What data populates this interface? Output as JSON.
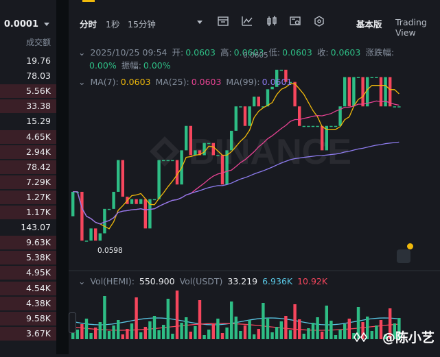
{
  "orderbook": {
    "header_price": "0.0001",
    "header_volume": "成交额",
    "rows": [
      {
        "v": "19.76",
        "fill": 0.0
      },
      {
        "v": "78.03",
        "fill": 0.0
      },
      {
        "v": "5.56K",
        "fill": 1.0
      },
      {
        "v": "33.38",
        "fill": 1.0
      },
      {
        "v": "15.29",
        "fill": 0.0
      },
      {
        "v": "4.65K",
        "fill": 1.0
      },
      {
        "v": "2.94K",
        "fill": 1.0
      },
      {
        "v": "78.42",
        "fill": 1.0
      },
      {
        "v": "7.29K",
        "fill": 1.0
      },
      {
        "v": "1.27K",
        "fill": 1.0
      },
      {
        "v": "1.17K",
        "fill": 1.0
      },
      {
        "v": "143.07",
        "fill": 0.0
      },
      {
        "v": "9.63K",
        "fill": 1.0
      },
      {
        "v": "5.38K",
        "fill": 1.0
      },
      {
        "v": "4.95K",
        "fill": 1.0
      },
      {
        "v": "4.54K",
        "fill": 1.0
      },
      {
        "v": "4.38K",
        "fill": 1.0
      },
      {
        "v": "9.58K",
        "fill": 1.0
      },
      {
        "v": "3.67K",
        "fill": 1.0
      }
    ]
  },
  "toolbar": {
    "intervals": [
      "分时",
      "1秒",
      "15分钟"
    ],
    "view_basic": "基本版",
    "view_tv": "Trading View",
    "icons": [
      "candle-settings-icon",
      "indicator-icon",
      "candlestick-icon",
      "drawing-tools-icon",
      "settings-hex-icon"
    ]
  },
  "ohlc": {
    "datetime": "2025/10/25 09:54",
    "open_label": "开:",
    "open": "0.0603",
    "high_label": "高:",
    "high": "0.0603",
    "low_label": "低:",
    "low": "0.0603",
    "close_label": "收:",
    "close": "0.0603",
    "change_label": "涨跌幅:",
    "change": "0.00%",
    "amp_label": "振幅:",
    "amp": "0.00%"
  },
  "ma": {
    "ma7_label": "MA(7):",
    "ma7": "0.0603",
    "ma25_label": "MA(25):",
    "ma25": "0.0603",
    "ma99_label": "MA(99):",
    "ma99": "0.0601"
  },
  "price_annotations": {
    "high": "0.0605",
    "low": "0.0598"
  },
  "volume": {
    "vol_label": "Vol(HEMI):",
    "vol": "550.900",
    "usdt_label": "Vol(USDT)",
    "usdt": "33.219",
    "ma1": "6.936K",
    "ma2": "10.92K"
  },
  "watermark": {
    "user": "@陈小艺"
  },
  "colors": {
    "up": "#2ebd85",
    "down": "#f6465d",
    "ma7": "#f0b90b",
    "ma25": "#e84393",
    "ma99": "#8e7cf0",
    "accent": "#f0b90b"
  }
}
